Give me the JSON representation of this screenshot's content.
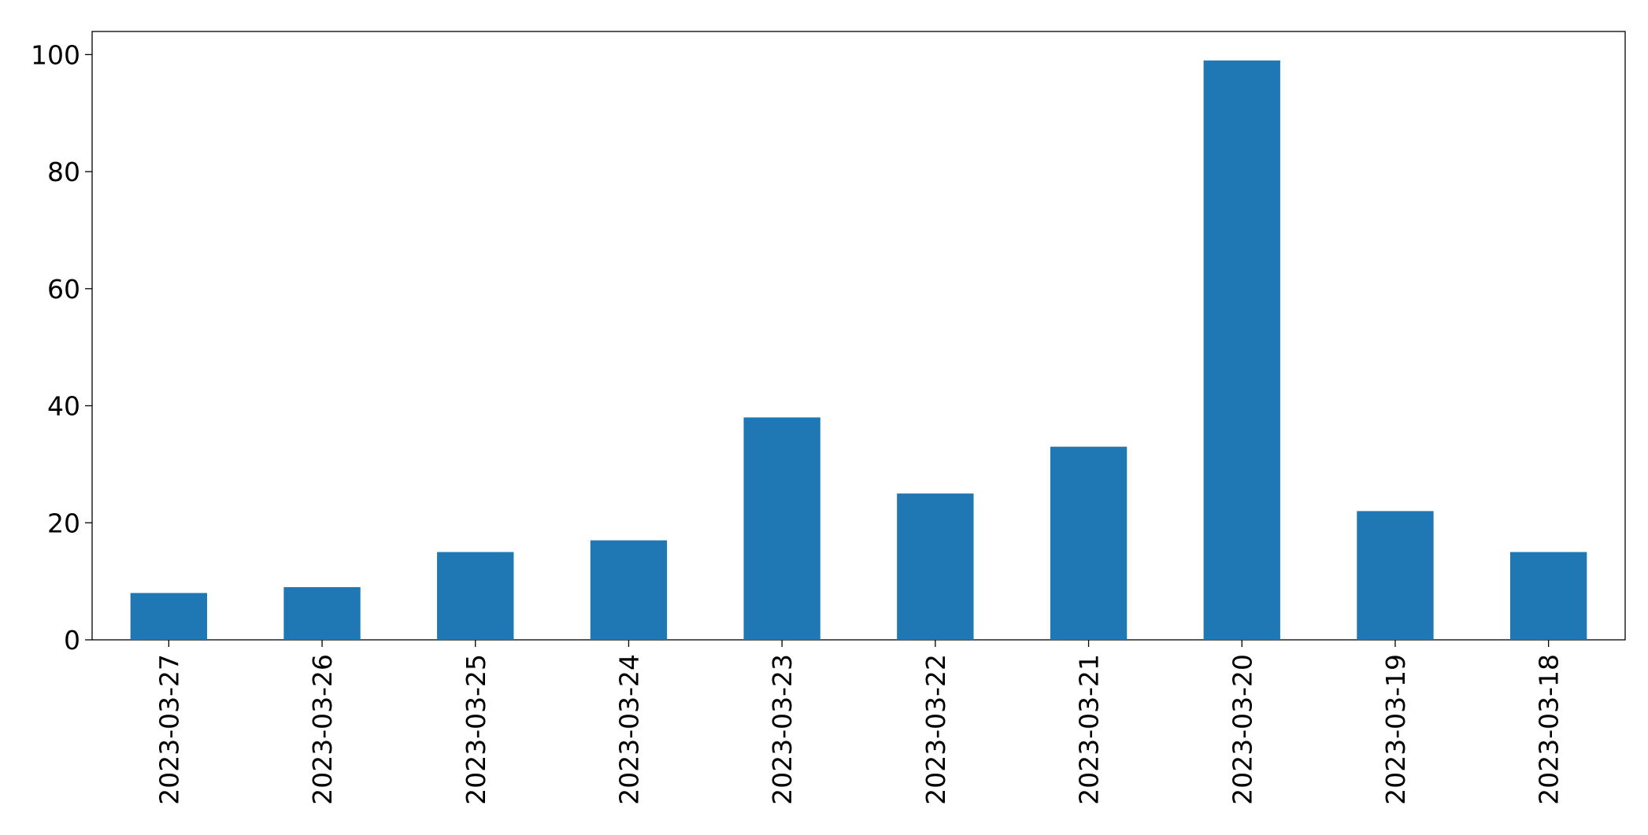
{
  "chart_data": {
    "type": "bar",
    "categories": [
      "2023-03-27",
      "2023-03-26",
      "2023-03-25",
      "2023-03-24",
      "2023-03-23",
      "2023-03-22",
      "2023-03-21",
      "2023-03-20",
      "2023-03-19",
      "2023-03-18"
    ],
    "values": [
      8,
      9,
      15,
      17,
      38,
      25,
      33,
      99,
      22,
      15
    ],
    "color": "#1f77b4",
    "ylim": [
      0,
      103.95
    ],
    "yticks": [
      0,
      20,
      40,
      60,
      80,
      100
    ],
    "grid": false
  }
}
